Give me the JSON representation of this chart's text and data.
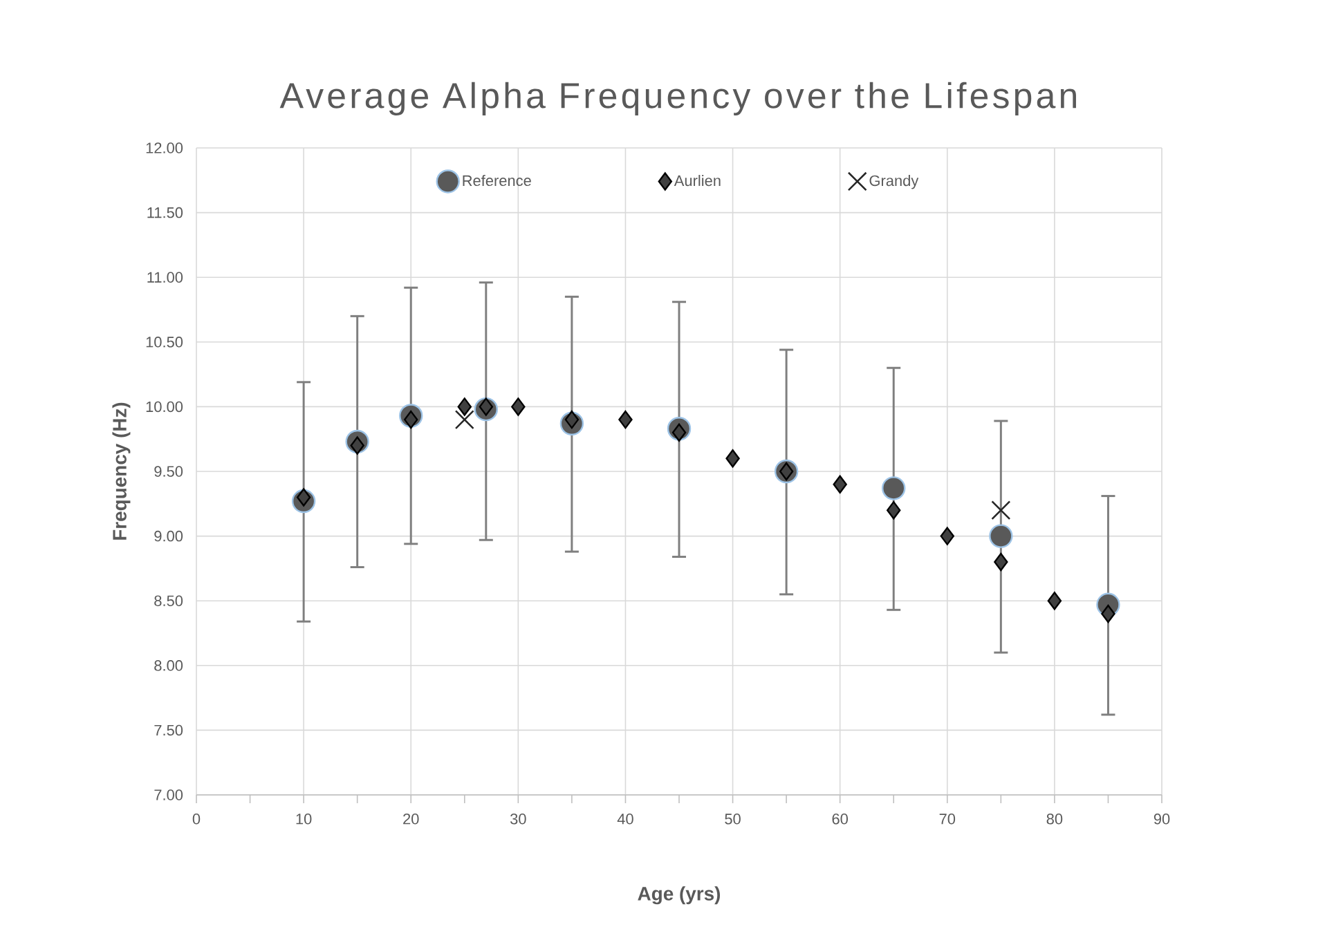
{
  "chart_data": {
    "type": "scatter",
    "title": "Average Alpha Frequency over the Lifespan",
    "xlabel": "Age (yrs)",
    "ylabel": "Frequency (Hz)",
    "xlim": [
      0,
      90
    ],
    "xticks": [
      0,
      10,
      20,
      30,
      40,
      50,
      60,
      70,
      80,
      90
    ],
    "ylim": [
      7,
      12
    ],
    "yticks": [
      {
        "value": 7,
        "label": "7.00"
      },
      {
        "value": 7.5,
        "label": "7.50"
      },
      {
        "value": 8,
        "label": "8.00"
      },
      {
        "value": 8.5,
        "label": "8.50"
      },
      {
        "value": 9,
        "label": "9.00"
      },
      {
        "value": 9.5,
        "label": "9.50"
      },
      {
        "value": 10,
        "label": "10.00"
      },
      {
        "value": 10.5,
        "label": "10.50"
      },
      {
        "value": 11,
        "label": "11.00"
      },
      {
        "value": 11.5,
        "label": "11.50"
      },
      {
        "value": 12,
        "label": "12.00"
      }
    ],
    "grid": true,
    "legend": "top",
    "series": [
      {
        "name": "Reference",
        "color": "#595959",
        "marker": "circle",
        "x": [
          10,
          15,
          20,
          27,
          35,
          45,
          55,
          65,
          75,
          85
        ],
        "values": [
          9.27,
          9.73,
          9.93,
          9.98,
          9.87,
          9.83,
          9.5,
          9.37,
          9.0,
          8.47
        ],
        "errors": [
          [
            8.34,
            10.19
          ],
          [
            8.76,
            10.7
          ],
          [
            8.94,
            10.92
          ],
          [
            8.97,
            10.96
          ],
          [
            8.88,
            10.85
          ],
          [
            8.84,
            10.81
          ],
          [
            8.55,
            10.44
          ],
          [
            8.43,
            10.3
          ],
          [
            8.1,
            9.89
          ],
          [
            7.62,
            9.31
          ]
        ]
      },
      {
        "name": "Aurlien",
        "color": "#404040",
        "marker": "diamond",
        "x": [
          10,
          15,
          20,
          25,
          27,
          30,
          35,
          40,
          45,
          50,
          55,
          60,
          65,
          70,
          75,
          80,
          85
        ],
        "values": [
          9.3,
          9.7,
          9.9,
          10.0,
          10.0,
          10.0,
          9.9,
          9.9,
          9.8,
          9.6,
          9.5,
          9.4,
          9.2,
          9.0,
          8.8,
          8.5,
          8.4
        ]
      },
      {
        "name": "Grandy",
        "color": "#262626",
        "marker": "cross",
        "x": [
          25,
          75
        ],
        "values": [
          9.9,
          9.2
        ]
      }
    ]
  }
}
